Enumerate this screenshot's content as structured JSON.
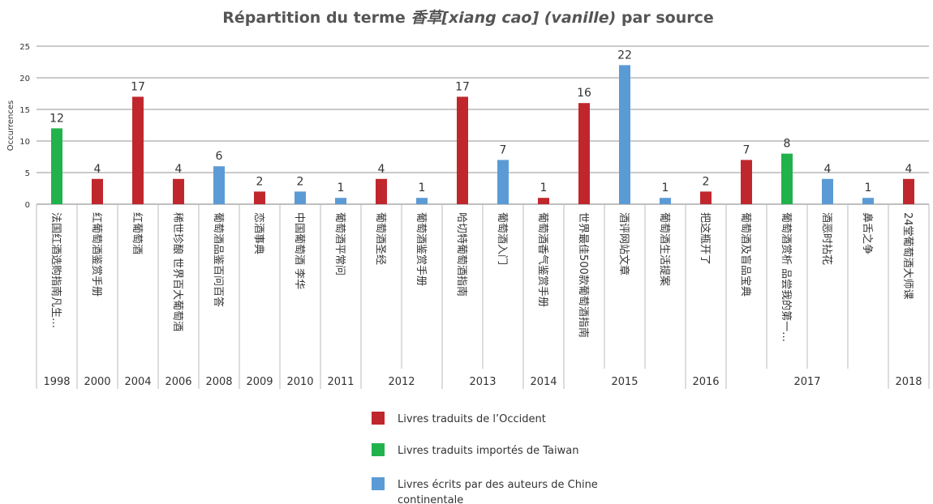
{
  "chart_data": {
    "type": "bar",
    "title": {
      "before": "Répartition du terme ",
      "italic": "香草[xiang cao] (vanille)",
      "after": " par source"
    },
    "y_label": "Occurrences",
    "ylim": [
      0,
      25
    ],
    "yticks": [
      0,
      5,
      10,
      15,
      20,
      25
    ],
    "grid": true,
    "categories": [
      "法国红酒选购指南凡生…",
      "红葡萄酒鉴赏手册",
      "红葡萄酒",
      "稀世珍酿 世界百大葡萄酒",
      "葡萄酒品鉴百问百答",
      "恋酒事典",
      "中国葡萄酒 李华",
      "葡萄酒平常问",
      "葡萄酒圣经",
      "葡萄酒鉴赏手册",
      "哈切特葡萄酒指南",
      "葡萄酒入门",
      "葡萄酒香气鉴赏手册",
      "世界最佳500款葡萄酒指南",
      "酒评网站文章",
      "葡萄酒生活提案",
      "把这瓶开了",
      "葡萄酒及盲品宝典",
      "葡萄酒赏析 品尝我的第一…",
      "酒恶时拈花",
      "鼻舌之争",
      "24堂葡萄酒大师课"
    ],
    "years": [
      "1998",
      "2000",
      "2004",
      "2006",
      "2008",
      "2009",
      "2010",
      "2011",
      "2012",
      null,
      "2013",
      null,
      "2014",
      "2015",
      null,
      null,
      "2016",
      "2017",
      null,
      null,
      null,
      "2018"
    ],
    "series": [
      {
        "name": "Livres traduits de l’Occident",
        "color": "#c0272d",
        "values": [
          null,
          4,
          17,
          4,
          null,
          2,
          null,
          null,
          4,
          null,
          17,
          null,
          1,
          16,
          null,
          null,
          2,
          7,
          null,
          null,
          null,
          4
        ]
      },
      {
        "name": "Livres traduits importés de Taiwan",
        "color": "#22b24c",
        "values": [
          12,
          null,
          null,
          null,
          null,
          null,
          null,
          null,
          null,
          null,
          null,
          null,
          null,
          null,
          null,
          null,
          null,
          null,
          8,
          null,
          null,
          null
        ]
      },
      {
        "name": "Livres écrits par des auteurs de Chine continentale",
        "color": "#5b9bd5",
        "values": [
          null,
          null,
          null,
          null,
          6,
          null,
          2,
          1,
          null,
          1,
          null,
          7,
          null,
          null,
          22,
          1,
          null,
          null,
          null,
          4,
          1,
          null
        ]
      }
    ]
  }
}
